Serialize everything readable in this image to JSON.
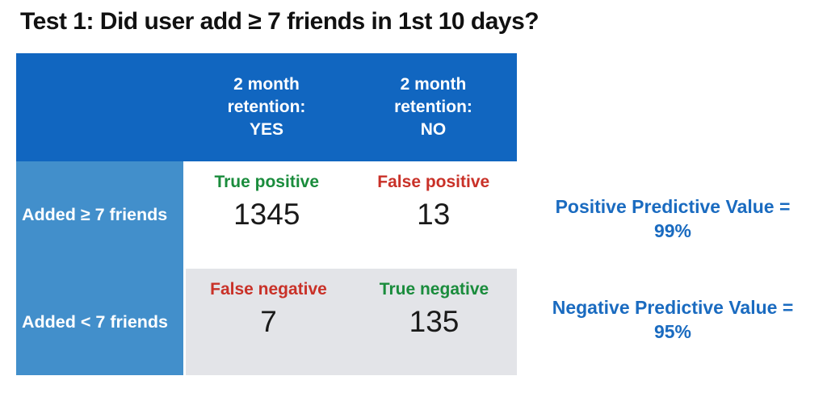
{
  "title": "Test 1: Did user add ≥ 7 friends in 1st 10 days?",
  "table": {
    "col_headers": [
      {
        "line1": "2 month",
        "line2": "retention:",
        "line3": "YES"
      },
      {
        "line1": "2 month",
        "line2": "retention:",
        "line3": "NO"
      }
    ],
    "rows": [
      {
        "label": "Added ≥ 7 friends",
        "cells": [
          {
            "tag": "True positive",
            "tag_color": "green",
            "value": "1345"
          },
          {
            "tag": "False positive",
            "tag_color": "red",
            "value": "13"
          }
        ]
      },
      {
        "label": "Added < 7 friends",
        "cells": [
          {
            "tag": "False negative",
            "tag_color": "red",
            "value": "7"
          },
          {
            "tag": "True negative",
            "tag_color": "green",
            "value": "135"
          }
        ]
      }
    ]
  },
  "annotations": [
    {
      "line1": "Positive Predictive Value =",
      "line2": "99%"
    },
    {
      "line1": "Negative Predictive Value =",
      "line2": "95%"
    }
  ],
  "colors": {
    "header_bg": "#1166c0",
    "row_label_bg": "#428fcb",
    "row2_bg": "#e3e4e8",
    "green": "#1a8c3c",
    "red": "#c93128",
    "annotation_blue": "#1a6bc0",
    "number_color": "#1a1a1a"
  },
  "chart_data": {
    "type": "table",
    "title": "Test 1: Did user add ≥ 7 friends in 1st 10 days?",
    "columns": [
      "2 month retention: YES",
      "2 month retention: NO"
    ],
    "row_labels": [
      "Added ≥ 7 friends",
      "Added < 7 friends"
    ],
    "cells": [
      [
        {
          "label": "True positive",
          "value": 1345
        },
        {
          "label": "False positive",
          "value": 13
        }
      ],
      [
        {
          "label": "False negative",
          "value": 7
        },
        {
          "label": "True negative",
          "value": 135
        }
      ]
    ],
    "annotations": [
      "Positive Predictive Value = 99%",
      "Negative Predictive Value = 95%"
    ],
    "legend_position": "none",
    "grid": false
  }
}
